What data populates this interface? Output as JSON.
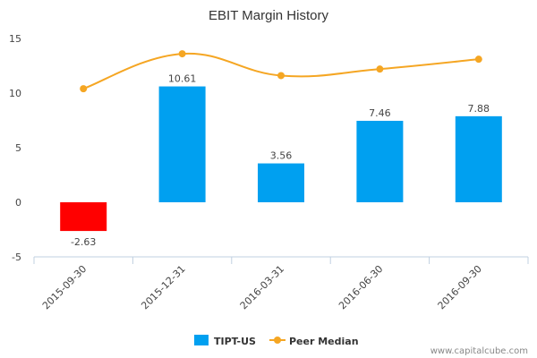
{
  "watermark": "www.capitalcube.com",
  "chart_data": {
    "type": "bar",
    "title": "EBIT Margin History",
    "xlabel": "",
    "ylabel": "",
    "ylim": [
      -5,
      15
    ],
    "yticks": [
      15,
      10,
      5,
      0,
      -5
    ],
    "categories": [
      "2015-09-30",
      "2015-12-31",
      "2016-03-31",
      "2016-06-30",
      "2016-09-30"
    ],
    "series": [
      {
        "name": "TIPT-US",
        "type": "bar",
        "color": "#00a0f0",
        "negative_color": "#ff0000",
        "values": [
          -2.63,
          10.61,
          3.56,
          7.46,
          7.88
        ],
        "labels": [
          "-2.63",
          "10.61",
          "3.56",
          "7.46",
          "7.88"
        ]
      },
      {
        "name": "Peer Median",
        "type": "line",
        "color": "#f5a623",
        "values": [
          10.4,
          13.6,
          11.6,
          12.2,
          13.1
        ]
      }
    ],
    "legend_position": "bottom",
    "grid": false
  }
}
